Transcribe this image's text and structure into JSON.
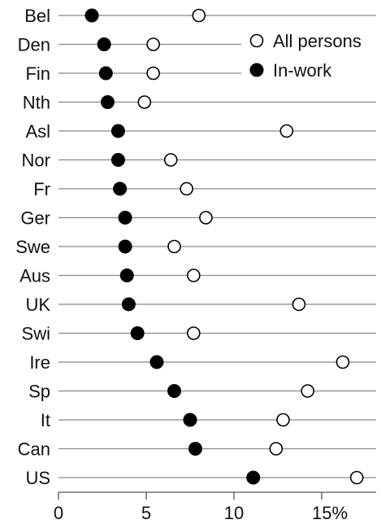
{
  "chart_data": {
    "type": "scatter",
    "categories": [
      "Bel",
      "Den",
      "Fin",
      "Nth",
      "Asl",
      "Nor",
      "Fr",
      "Ger",
      "Swe",
      "Aus",
      "UK",
      "Swi",
      "Ire",
      "Sp",
      "It",
      "Can",
      "US"
    ],
    "series": [
      {
        "name": "All persons",
        "marker": "open-circle",
        "values": [
          8.0,
          5.4,
          5.4,
          4.9,
          13.0,
          6.4,
          7.3,
          8.4,
          6.6,
          7.7,
          13.7,
          7.7,
          16.2,
          14.2,
          12.8,
          12.4,
          17.0
        ]
      },
      {
        "name": "In-work",
        "marker": "filled-circle",
        "values": [
          1.9,
          2.6,
          2.7,
          2.8,
          3.4,
          3.4,
          3.5,
          3.8,
          3.8,
          3.9,
          4.0,
          4.5,
          5.6,
          6.6,
          7.5,
          7.8,
          11.1
        ]
      }
    ],
    "xticks": [
      0,
      5,
      10,
      15
    ],
    "xtick_labels": [
      "0",
      "5",
      "10",
      "15%"
    ],
    "xlim": [
      0,
      18.5
    ],
    "legend": {
      "position": "top-right"
    },
    "grid": {
      "horizontal": true,
      "vertical": false
    },
    "colors": {
      "line": "#888888",
      "marker": "#000000",
      "background": "#ffffff"
    }
  }
}
